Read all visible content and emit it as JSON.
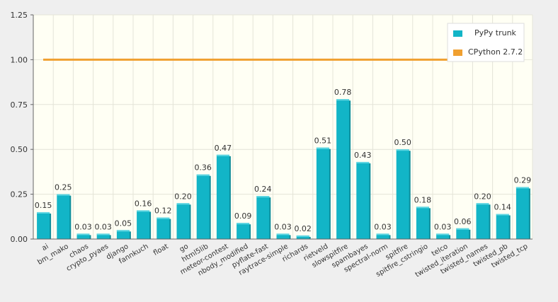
{
  "chart_data": {
    "type": "bar",
    "title": "",
    "xlabel": "",
    "ylabel": "",
    "ylim": [
      0,
      1.25
    ],
    "yticks": [
      "0.00",
      "0.25",
      "0.50",
      "0.75",
      "1.00",
      "1.25"
    ],
    "ytick_values": [
      0,
      0.25,
      0.5,
      0.75,
      1.0,
      1.25
    ],
    "categories": [
      "ai",
      "bm_mako",
      "chaos",
      "crypto_pyaes",
      "django",
      "fannkuch",
      "float",
      "go",
      "html5lib",
      "meteor-contest",
      "nbody_modified",
      "pyflate-fast",
      "raytrace-simple",
      "richards",
      "rietveld",
      "slowspitfire",
      "spambayes",
      "spectral-norm",
      "spitfire",
      "spitfire_cstringio",
      "telco",
      "twisted_iteration",
      "twisted_names",
      "twisted_pb",
      "twisted_tcp"
    ],
    "series": [
      {
        "name": "PyPy trunk",
        "kind": "bar",
        "color": "#12b5c7",
        "values": [
          0.15,
          0.25,
          0.03,
          0.03,
          0.05,
          0.16,
          0.12,
          0.2,
          0.36,
          0.47,
          0.09,
          0.24,
          0.03,
          0.02,
          0.51,
          0.78,
          0.43,
          0.03,
          0.5,
          0.18,
          0.03,
          0.06,
          0.2,
          0.14,
          0.29
        ],
        "labels": [
          "0.15",
          "0.25",
          "0.03",
          "0.03",
          "0.05",
          "0.16",
          "0.12",
          "0.20",
          "0.36",
          "0.47",
          "0.09",
          "0.24",
          "0.03",
          "0.02",
          "0.51",
          "0.78",
          "0.43",
          "0.03",
          "0.50",
          "0.18",
          "0.03",
          "0.06",
          "0.20",
          "0.14",
          "0.29"
        ]
      },
      {
        "name": "CPython 2.7.2",
        "kind": "line",
        "color": "#f0a030",
        "value": 1.0
      }
    ],
    "legend": {
      "position": "top-right",
      "entries": [
        "PyPy trunk",
        "CPython 2.7.2"
      ]
    },
    "colors": {
      "plot_background": "#fffff4",
      "page_background": "#efefef",
      "grid": "#e4e4d8",
      "axis": "#666666",
      "bar_side": "#0e8e9c",
      "bar_top": "#5fd6e2"
    }
  }
}
